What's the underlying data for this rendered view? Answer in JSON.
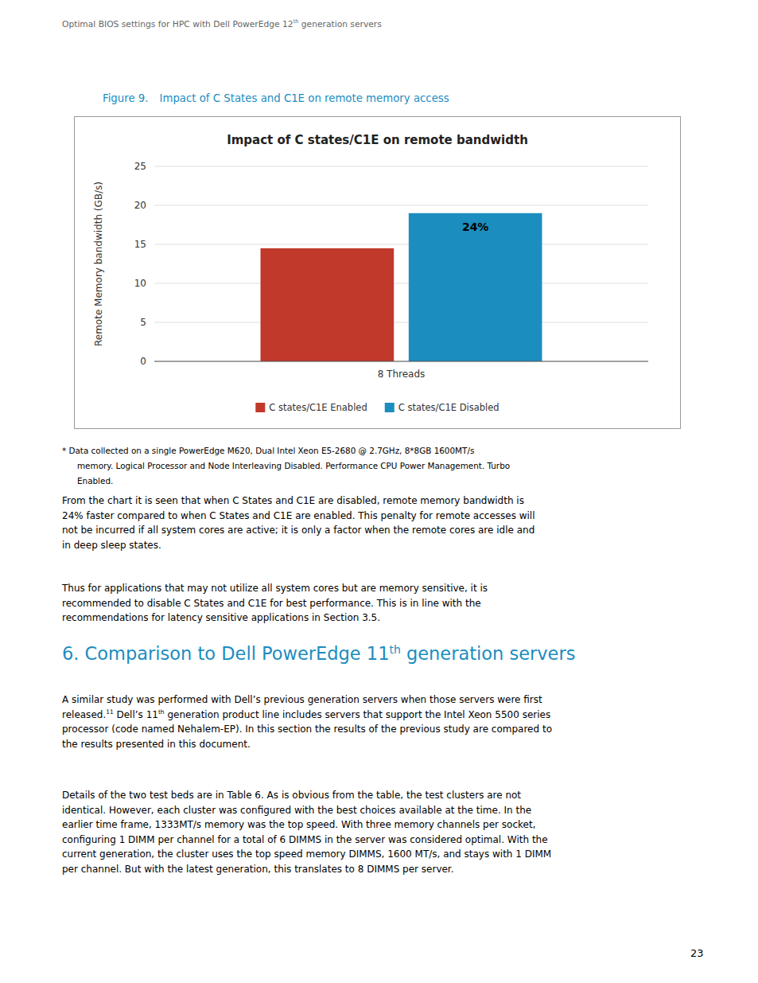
{
  "chart_data": {
    "type": "bar",
    "title": "Impact of C states/C1E on remote bandwidth",
    "y_label": "Remote Memory bandwidth (GB/s)",
    "categories": [
      "8 Threads"
    ],
    "series": [
      {
        "name": "C states/C1E Enabled",
        "color": "#C0392B",
        "values": [
          14.5
        ]
      },
      {
        "name": "C states/C1E Disabled",
        "color": "#1C8DBF",
        "values": [
          19.0
        ]
      }
    ],
    "ylim": [
      0,
      25
    ],
    "yticks": [
      0,
      5,
      10,
      15,
      20,
      25
    ],
    "grid": true,
    "legend": "bottom",
    "annotations": [
      {
        "text": "24%",
        "category_index": 0,
        "series_index": 1,
        "y": 17.2
      }
    ]
  },
  "page": {
    "header": {
      "text": "Optimal BIOS settings for HPC with Dell PowerEdge 12",
      "super": "th",
      "suffix": " generation servers"
    },
    "figure_label": "Figure 9.",
    "figure_title": "Impact of C States and C1E on remote memory access",
    "footnotes": [
      "* Data collected on a single PowerEdge M620, Dual Intel Xeon E5-2680 @ 2.7GHz, 8*8GB 1600MT/s",
      "memory. Logical Processor and Node Interleaving Disabled. Performance CPU Power Management. Turbo",
      "Enabled."
    ],
    "body_text1": "From the chart it is seen that when C States and C1E are disabled, remote memory bandwidth is\n24% faster compared to when C States and C1E are enabled. This penalty for remote accesses will\nnot be incurred if all system cores are active; it is only a factor when the remote cores are idle and\nin deep sleep states.",
    "body_text2": "Thus for applications that may not utilize all system cores but are memory sensitive, it is\nrecommended to disable C States and C1E for best performance. This is in line with the\nrecommendations for latency sensitive applications in Section 3.5.",
    "section": {
      "text": "6. Comparison to Dell PowerEdge 11",
      "super": "th",
      "tail": " generation servers"
    },
    "body_text3": {
      "text": "A similar study was performed with Dell’s previous generation servers when those servers were first\nreleased.",
      "super": "11",
      "cont": " Dell’s 11",
      "super2": "th",
      "tail": " generation product line includes servers that support the Intel Xeon 5500 series\nprocessor (code named Nehalem-EP). In this section the results of the previous study are compared to\nthe results presented in this document."
    },
    "body_text4": "Details of the two test beds are in Table 6. As is obvious from the table, the test clusters are not\nidentical. However, each cluster was configured with the best choices available at the time. In the\nearlier time frame, 1333MT/s memory was the top speed. With three memory channels per socket,\nconfiguring 1 DIMM per channel for a total of 6 DIMMS in the server was considered optimal. With the\ncurrent generation, the cluster uses the top speed memory DIMMS, 1600 MT/s, and stays with 1 DIMM\nper channel. But with the latest generation, this translates to 8 DIMMS per server.",
    "page_number": "23"
  }
}
